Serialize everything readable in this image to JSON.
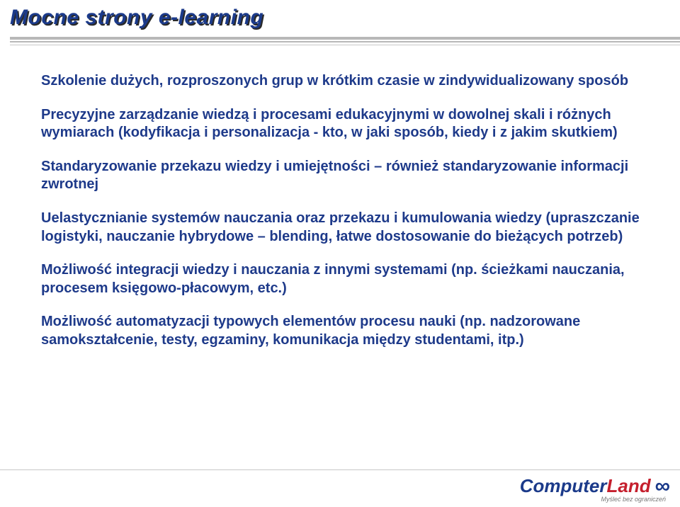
{
  "title": "Mocne strony e-learning",
  "paragraphs": [
    {
      "bold": true,
      "text": "Szkolenie dużych, rozproszonych grup w krótkim czasie w zindywidualizowany sposób"
    },
    {
      "bold": true,
      "text": "Precyzyjne zarządzanie wiedzą i procesami edukacyjnymi w dowolnej skali i różnych wymiarach (kodyfikacja i personalizacja - kto, w jaki sposób, kiedy i z jakim skutkiem)"
    },
    {
      "bold": true,
      "text": "Standaryzowanie przekazu wiedzy i umiejętności – również standaryzowanie informacji zwrotnej"
    },
    {
      "bold": false,
      "text": "Uelastycznianie systemów nauczania oraz przekazu i kumulowania wiedzy (upraszczanie logistyki, nauczanie hybrydowe – blending, łatwe dostosowanie do bieżących potrzeb)"
    },
    {
      "bold": false,
      "text": "Możliwość integracji wiedzy i nauczania z innymi systemami (np. ścieżkami nauczania, procesem księgowo-płacowym, etc.)"
    },
    {
      "bold": false,
      "text": "Możliwość automatyzacji typowych elementów procesu nauki (np. nadzorowane samokształcenie, testy, egzaminy, komunikacja między studentami, itp.)"
    }
  ],
  "logo": {
    "part1": "Computer",
    "part2": "Land",
    "tagline": "Myśleć bez ograniczeń"
  },
  "colors": {
    "titleColor": "#1b3a8a",
    "titleShadow": "#2a2a2a",
    "bodyText": "#1e3a8a",
    "logoBlue": "#1b3a8a",
    "logoRed": "#c51f2d",
    "ruleGray": "#b8b8b8",
    "bg": "#ffffff"
  }
}
